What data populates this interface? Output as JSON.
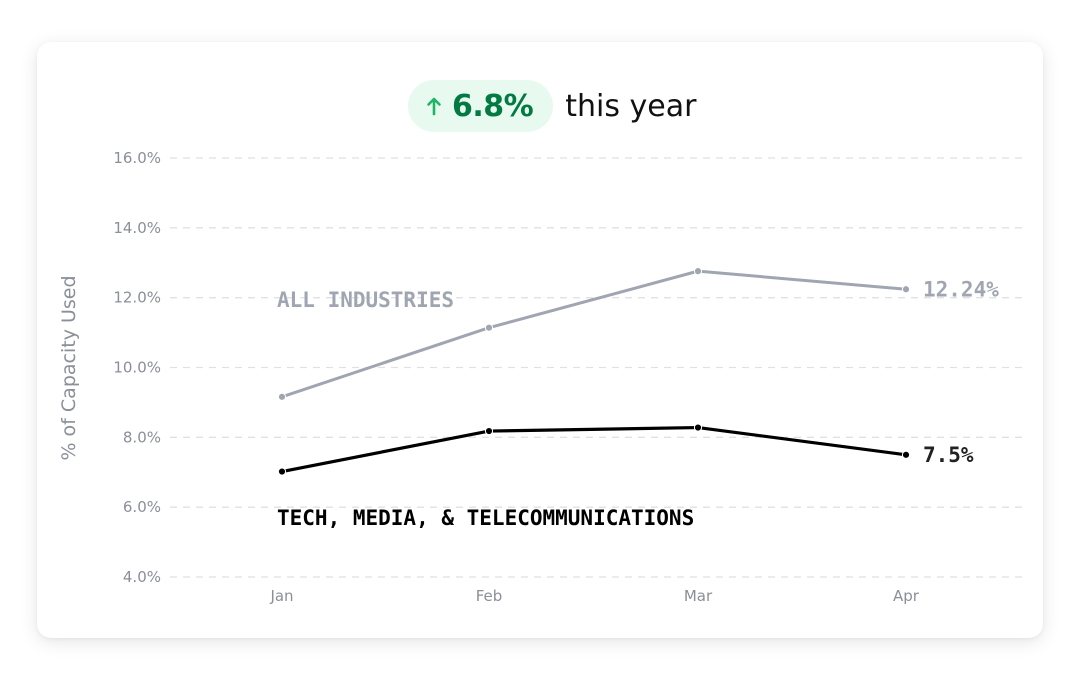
{
  "headline": {
    "change": "6.8%",
    "arrow_icon": "arrow-up-icon",
    "suffix": "this year",
    "accent": "#047a43",
    "pill_bg": "#e8faf0"
  },
  "chart_data": {
    "type": "line",
    "categories": [
      "Jan",
      "Feb",
      "Mar",
      "Apr"
    ],
    "ylabel": "% of Capacity Used",
    "ylim": [
      4.0,
      16.0
    ],
    "yticks": [
      "4.0%",
      "6.0%",
      "8.0%",
      "10.0%",
      "12.0%",
      "14.0%",
      "16.0%"
    ],
    "grid": true,
    "series": [
      {
        "name": "ALL INDUSTRIES",
        "values": [
          9.16,
          11.14,
          12.76,
          12.24
        ],
        "end_label": "12.24%",
        "color": "#a0a6b1"
      },
      {
        "name": "TECH, MEDIA, & TELECOMMUNICATIONS",
        "values": [
          7.02,
          8.18,
          8.28,
          7.5
        ],
        "end_label": "7.5%",
        "color": "#000000"
      }
    ]
  }
}
